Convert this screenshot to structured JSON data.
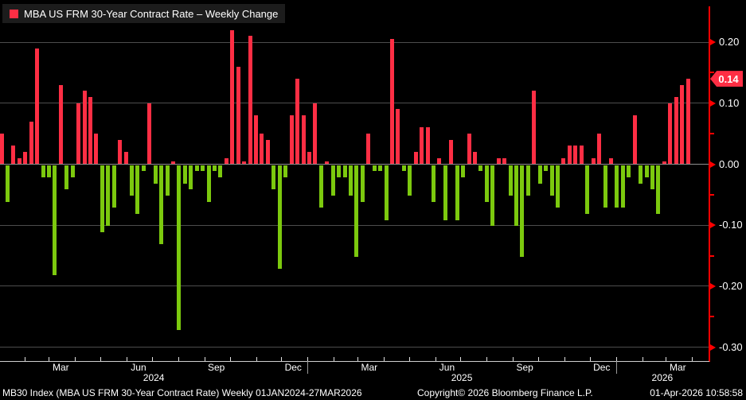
{
  "legend": {
    "label": "MBA US FRM 30-Year Contract Rate – Weekly Change"
  },
  "colors": {
    "background": "#000000",
    "positive_bar": "#fe2e44",
    "negative_bar": "#7cc90e",
    "y_axis": "#ff0000",
    "gridline": "#4d4d4d",
    "zero_line": "#8f8f8f",
    "x_axis": "#cfcfcf",
    "text": "#ffffff",
    "legend_bg": "#1c1c1c",
    "last_tag_bg": "#fe2e44"
  },
  "y_axis": {
    "labeled_ticks": [
      "0.20",
      "0.10",
      "0.00",
      "-0.10",
      "-0.20",
      "-0.30"
    ],
    "labeled_values": [
      0.2,
      0.1,
      0.0,
      -0.1,
      -0.2,
      -0.3
    ],
    "minor_values": [
      0.15,
      0.05,
      -0.05,
      -0.15,
      -0.25
    ],
    "last_tag": "0.14",
    "last_tag_value": 0.14
  },
  "x_axis": {
    "month_labels": [
      {
        "label": "Mar",
        "month": 3,
        "year": 2024
      },
      {
        "label": "Jun",
        "month": 6,
        "year": 2024
      },
      {
        "label": "Sep",
        "month": 9,
        "year": 2024
      },
      {
        "label": "Dec",
        "month": 12,
        "year": 2024
      },
      {
        "label": "Mar",
        "month": 3,
        "year": 2025
      },
      {
        "label": "Jun",
        "month": 6,
        "year": 2025
      },
      {
        "label": "Sep",
        "month": 9,
        "year": 2025
      },
      {
        "label": "Dec",
        "month": 12,
        "year": 2025
      },
      {
        "label": "Mar",
        "month": 3,
        "year": 2026
      }
    ],
    "year_labels": [
      "2024",
      "2025",
      "2026"
    ]
  },
  "footer": {
    "left": "MB30 Index (MBA US FRM 30-Year Contract Rate) Weekly 01JAN2024-27MAR2026",
    "center": "Copyright© 2026 Bloomberg Finance L.P.",
    "right": "01-Apr-2026 10:58:58"
  },
  "chart_data": {
    "type": "bar",
    "title": "MBA US FRM 30-Year Contract Rate – Weekly Change",
    "frequency": "weekly",
    "period": "01JAN2024-27MAR2026",
    "ylabel": "",
    "ylim": [
      -0.32,
      0.24
    ],
    "y_gridlines": [
      0.2,
      0.1,
      0.0,
      -0.1,
      -0.2,
      -0.3
    ],
    "last_value": 0.14,
    "legend_position": "top-left",
    "values": [
      0.05,
      -0.06,
      0.03,
      0.01,
      0.02,
      0.07,
      0.19,
      -0.02,
      -0.02,
      -0.18,
      0.13,
      -0.04,
      -0.02,
      0.1,
      0.12,
      0.11,
      0.05,
      -0.11,
      -0.1,
      -0.07,
      0.04,
      0.02,
      -0.05,
      -0.08,
      -0.01,
      0.1,
      -0.03,
      -0.13,
      -0.05,
      0.005,
      -0.27,
      -0.03,
      -0.04,
      -0.01,
      -0.01,
      -0.06,
      -0.01,
      -0.02,
      0.01,
      0.22,
      0.16,
      0.005,
      0.21,
      0.08,
      0.05,
      0.04,
      -0.04,
      -0.17,
      -0.02,
      0.08,
      0.14,
      0.08,
      0.02,
      0.1,
      -0.07,
      0.005,
      -0.05,
      -0.02,
      -0.02,
      -0.05,
      -0.15,
      -0.06,
      0.05,
      -0.01,
      -0.01,
      -0.09,
      0.205,
      0.09,
      -0.01,
      -0.05,
      0.02,
      0.06,
      0.06,
      -0.06,
      0.01,
      -0.09,
      0.04,
      -0.09,
      -0.02,
      0.05,
      0.02,
      -0.01,
      -0.06,
      -0.1,
      0.01,
      0.01,
      -0.05,
      -0.1,
      -0.15,
      -0.05,
      0.12,
      -0.03,
      -0.01,
      -0.05,
      -0.07,
      0.01,
      0.03,
      0.03,
      0.03,
      -0.08,
      0.01,
      0.05,
      -0.07,
      0.01,
      -0.07,
      -0.07,
      -0.02,
      0.08,
      -0.03,
      -0.02,
      -0.04,
      -0.08,
      0.005,
      0.1,
      0.11,
      0.13,
      0.14
    ]
  }
}
